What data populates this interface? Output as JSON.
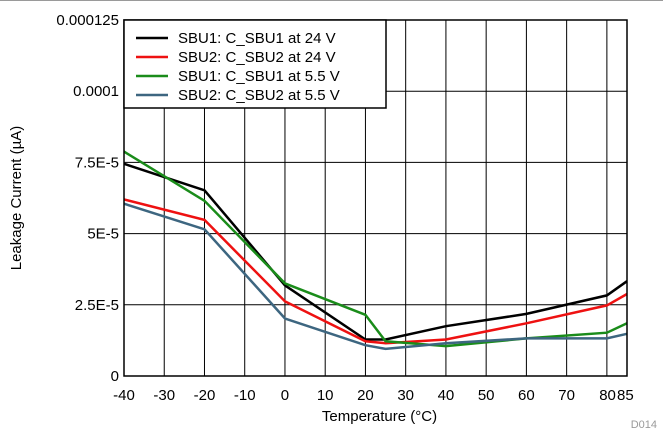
{
  "chart_data": {
    "type": "line",
    "xlabel": "Temperature (°C)",
    "ylabel": "Leakage Current (µA)",
    "xlim": [
      -40,
      85
    ],
    "ylim": [
      0,
      0.000125
    ],
    "x_ticks": [
      -40,
      -30,
      -20,
      -10,
      0,
      10,
      20,
      30,
      40,
      50,
      60,
      70,
      80,
      85
    ],
    "x_tick_labels": [
      "-40",
      "-30",
      "-20",
      "-10",
      "0",
      "10",
      "20",
      "30",
      "40",
      "50",
      "60",
      "70",
      "80",
      "85"
    ],
    "y_ticks": [
      0,
      2.5e-05,
      5e-05,
      7.5e-05,
      0.0001,
      0.000125
    ],
    "y_tick_labels": [
      "0",
      "2.5E-5",
      "5E-5",
      "7.5E-5",
      "0.0001",
      "0.000125"
    ],
    "grid": true,
    "legend_position": "top-left",
    "figure_code": "D014",
    "series": [
      {
        "name": "SBU1: C_SBU1 at 24 V",
        "color": "#000000",
        "x": [
          -40,
          -20,
          0,
          20,
          25,
          40,
          60,
          80,
          85
        ],
        "y": [
          7.45e-05,
          6.52e-05,
          3.18e-05,
          1.28e-05,
          1.28e-05,
          1.75e-05,
          2.18e-05,
          2.83e-05,
          3.33e-05
        ]
      },
      {
        "name": "SBU2: C_SBU2 at 24 V",
        "color": "#ee1111",
        "x": [
          -40,
          -20,
          0,
          20,
          25,
          40,
          60,
          80,
          85
        ],
        "y": [
          6.2e-05,
          5.48e-05,
          2.62e-05,
          1.22e-05,
          1.15e-05,
          1.28e-05,
          1.85e-05,
          2.48e-05,
          2.88e-05
        ]
      },
      {
        "name": "SBU1: C_SBU1 at 5.5 V",
        "color": "#1a8c1a",
        "x": [
          -40,
          -20,
          0,
          20,
          25,
          40,
          60,
          80,
          85
        ],
        "y": [
          7.88e-05,
          6.15e-05,
          3.25e-05,
          2.15e-05,
          1.22e-05,
          1.05e-05,
          1.32e-05,
          1.52e-05,
          1.85e-05
        ]
      },
      {
        "name": "SBU2: C_SBU2 at 5.5 V",
        "color": "#3d6680",
        "x": [
          -40,
          -20,
          0,
          20,
          25,
          40,
          60,
          80,
          85
        ],
        "y": [
          6.05e-05,
          5.15e-05,
          2.02e-05,
          1.08e-05,
          9.5e-06,
          1.15e-05,
          1.32e-05,
          1.32e-05,
          1.48e-05
        ]
      }
    ]
  }
}
